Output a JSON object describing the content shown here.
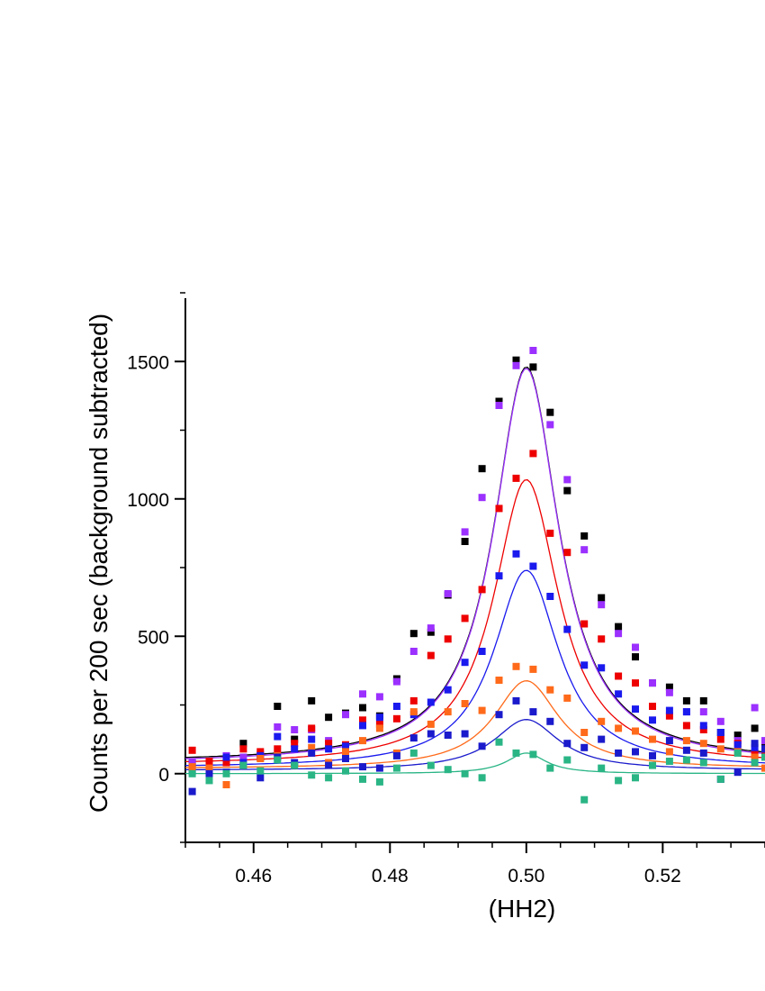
{
  "chart_data": {
    "type": "scatter",
    "title": "",
    "xlabel": "(HH2)",
    "ylabel": "Counts per 200 sec (background subtracted)",
    "xlim": [
      0.45,
      0.535
    ],
    "ylim": [
      -250,
      1750
    ],
    "xticks": [
      0.46,
      0.48,
      0.5,
      0.52
    ],
    "xtick_labels": [
      "0.46",
      "0.48",
      "0.50",
      "0.52"
    ],
    "yticks": [
      0,
      500,
      1000,
      1500
    ],
    "ytick_labels": [
      "0",
      "500",
      "1000",
      "1500"
    ],
    "grid": false,
    "legend": "none",
    "x": [
      0.451,
      0.4535,
      0.456,
      0.4585,
      0.461,
      0.4635,
      0.466,
      0.4685,
      0.471,
      0.4735,
      0.476,
      0.4785,
      0.481,
      0.4835,
      0.486,
      0.4885,
      0.491,
      0.4935,
      0.496,
      0.4985,
      0.501,
      0.5035,
      0.506,
      0.5085,
      0.511,
      0.5135,
      0.516,
      0.5185,
      0.521,
      0.5235,
      0.526,
      0.5285,
      0.531,
      0.5335,
      0.535
    ],
    "series": [
      {
        "name": "black",
        "color": "#000000",
        "fit_amplitude": 1440,
        "fit_offset": 40,
        "fit_width": 0.0058,
        "values": [
          38,
          40,
          60,
          110,
          60,
          245,
          125,
          265,
          205,
          220,
          240,
          210,
          345,
          510,
          515,
          650,
          845,
          1110,
          1355,
          1505,
          1480,
          1315,
          1030,
          865,
          640,
          535,
          425,
          330,
          315,
          265,
          265,
          150,
          140,
          165,
          115
        ]
      },
      {
        "name": "purple",
        "color": "#9b30ff",
        "fit_amplitude": 1440,
        "fit_offset": 35,
        "fit_width": 0.0058,
        "values": [
          40,
          45,
          65,
          60,
          70,
          170,
          160,
          160,
          120,
          215,
          290,
          280,
          335,
          445,
          530,
          655,
          880,
          1005,
          1340,
          1485,
          1540,
          1270,
          1070,
          815,
          615,
          510,
          460,
          330,
          295,
          225,
          225,
          190,
          120,
          240,
          120
        ]
      },
      {
        "name": "red",
        "color": "#ee0000",
        "fit_amplitude": 1040,
        "fit_offset": 30,
        "fit_width": 0.0058,
        "values": [
          85,
          45,
          40,
          90,
          80,
          90,
          110,
          165,
          110,
          105,
          195,
          180,
          200,
          265,
          430,
          490,
          565,
          670,
          965,
          1075,
          1165,
          875,
          805,
          545,
          490,
          355,
          330,
          245,
          210,
          175,
          160,
          125,
          110,
          75,
          80
        ]
      },
      {
        "name": "blue",
        "color": "#1a1aee",
        "fit_amplitude": 720,
        "fit_offset": 20,
        "fit_width": 0.0058,
        "values": [
          10,
          5,
          60,
          40,
          65,
          135,
          90,
          125,
          90,
          100,
          175,
          205,
          245,
          215,
          260,
          305,
          405,
          445,
          720,
          800,
          755,
          645,
          525,
          395,
          385,
          290,
          235,
          195,
          230,
          225,
          175,
          150,
          105,
          95,
          90
        ]
      },
      {
        "name": "orange",
        "color": "#ff6a1a",
        "fit_amplitude": 320,
        "fit_offset": 18,
        "fit_width": 0.0058,
        "values": [
          25,
          20,
          -40,
          30,
          55,
          65,
          30,
          95,
          40,
          80,
          120,
          165,
          75,
          225,
          180,
          225,
          255,
          230,
          340,
          390,
          380,
          305,
          275,
          150,
          190,
          165,
          155,
          125,
          80,
          120,
          110,
          90,
          80,
          60,
          20
        ]
      },
      {
        "name": "navy",
        "color": "#1a1acc",
        "fit_amplitude": 185,
        "fit_offset": 12,
        "fit_width": 0.0058,
        "values": [
          -65,
          0,
          5,
          30,
          -15,
          60,
          40,
          75,
          30,
          55,
          25,
          20,
          65,
          130,
          145,
          140,
          145,
          100,
          215,
          265,
          225,
          190,
          110,
          95,
          125,
          75,
          80,
          65,
          120,
          85,
          75,
          -20,
          5,
          110,
          90
        ]
      },
      {
        "name": "green",
        "color": "#2ab585",
        "fit_amplitude": 75,
        "fit_offset": 0,
        "fit_width": 0.0035,
        "values": [
          0,
          -25,
          0,
          30,
          10,
          50,
          30,
          -5,
          -15,
          10,
          -20,
          -30,
          20,
          75,
          30,
          15,
          0,
          -15,
          115,
          75,
          70,
          20,
          50,
          -95,
          20,
          -25,
          -15,
          30,
          45,
          50,
          40,
          -20,
          75,
          40,
          60
        ]
      }
    ]
  }
}
